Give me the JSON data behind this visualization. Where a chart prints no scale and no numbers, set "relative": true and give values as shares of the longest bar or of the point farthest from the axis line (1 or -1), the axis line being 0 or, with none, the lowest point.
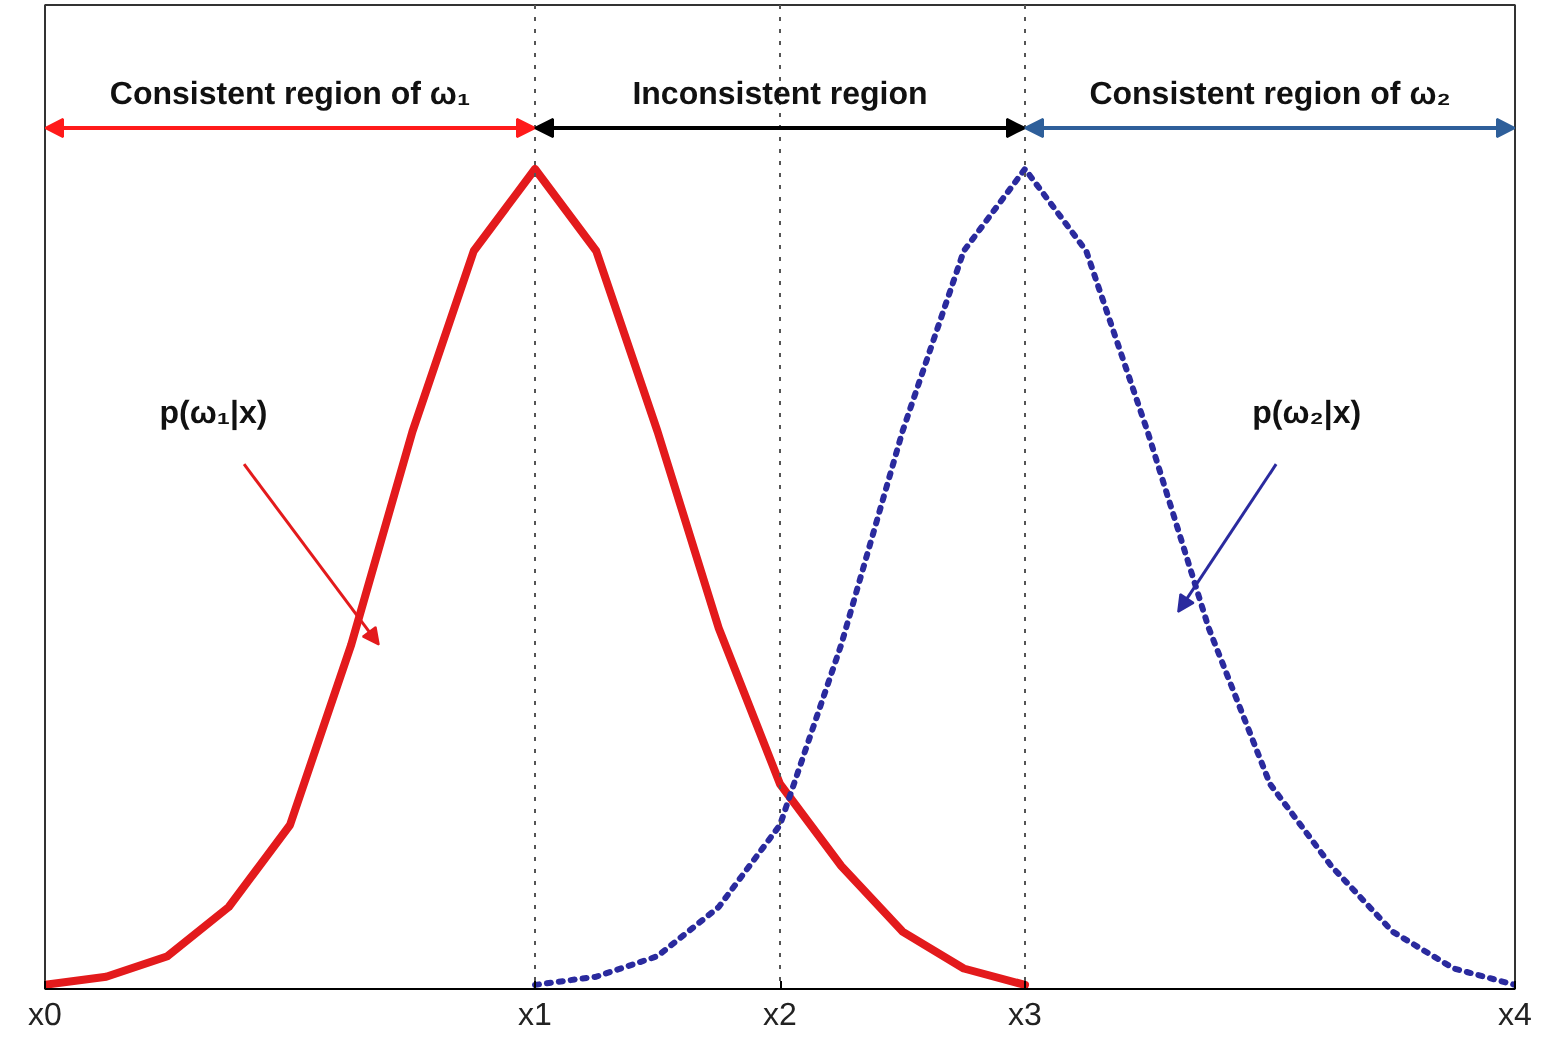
{
  "chart_data": {
    "type": "line",
    "relative": true,
    "categories": [
      "x0",
      null,
      null,
      null,
      null,
      null,
      null,
      null,
      "x1",
      null,
      null,
      null,
      "x2",
      null,
      null,
      null,
      "x3",
      null,
      null,
      null,
      null,
      null,
      null,
      null,
      "x4"
    ],
    "series": [
      {
        "color": "#e31a1c",
        "line_style": "solid",
        "values": [
          0.005,
          0.015,
          0.04,
          0.1,
          0.2,
          0.42,
          0.68,
          0.9,
          1,
          0.9,
          0.68,
          0.44,
          0.25,
          0.15,
          0.07,
          0.025,
          0.005,
          null,
          null,
          null,
          null,
          null,
          null,
          null,
          null
        ]
      },
      {
        "color": "#2a2a9e",
        "line_style": "dotted",
        "values": [
          null,
          null,
          null,
          null,
          null,
          null,
          null,
          null,
          0.005,
          0.015,
          0.04,
          0.1,
          0.2,
          0.42,
          0.68,
          0.9,
          1,
          0.9,
          0.68,
          0.44,
          0.25,
          0.15,
          0.07,
          0.025,
          0.005
        ]
      }
    ],
    "ref_lines": [
      {
        "axis": "x",
        "value": "x1",
        "color": "#555555",
        "line_style": "dotted"
      },
      {
        "axis": "x",
        "value": "x2",
        "color": "#555555",
        "line_style": "dotted"
      },
      {
        "axis": "x",
        "value": "x3",
        "color": "#555555",
        "line_style": "dotted"
      }
    ],
    "annotations": [
      "Consistent region of ω₁",
      "Inconsistent region",
      "Consistent region of ω₂",
      "p(ω₁|x)",
      "p(ω₂|x)"
    ],
    "grid": false
  }
}
